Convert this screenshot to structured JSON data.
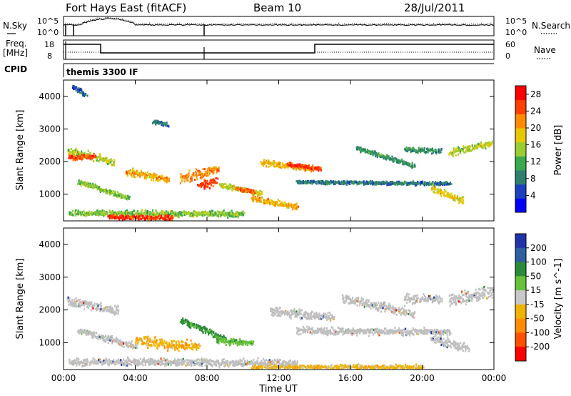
{
  "header": {
    "station": "Fort Hays East (fitACF)",
    "beam": "Beam 10",
    "date": "28/Jul/2011"
  },
  "side_labels": {
    "nsky": "N.Sky",
    "freq_l1": "Freq.",
    "freq_l2": "[MHz]",
    "cpid": "CPID",
    "nsearch": "N.Search",
    "nave": "Nave"
  },
  "small_axis_ticks": {
    "noise_left": [
      "10^5",
      "10^0"
    ],
    "noise_right": [
      "10^5",
      "10^0"
    ],
    "freq_left": [
      "18",
      "8"
    ],
    "freq_right": [
      "60",
      "0"
    ]
  },
  "cpid_text": "themis 3300 IF",
  "colors": {
    "power": [
      "#0000ff",
      "#1e3fbf",
      "#2f7f6f",
      "#3aa84e",
      "#9acd32",
      "#e8c800",
      "#ff8c00",
      "#ff4000",
      "#ff0000"
    ],
    "velocity": [
      "#2233aa",
      "#2f5fa0",
      "#2a8a3a",
      "#66c23a",
      "#c8c8c8",
      "#f0b400",
      "#ff8c00",
      "#ff5000",
      "#ff0000"
    ],
    "ground_scatter": "#bfbfbf"
  },
  "chart_data": [
    {
      "type": "heatmap",
      "title": "Power",
      "xlabel": "",
      "ylabel": "Slant Range [km]",
      "xlim": [
        0,
        24
      ],
      "ylim": [
        180,
        4500
      ],
      "x_ticks": [
        "00:00",
        "04:00",
        "08:00",
        "12:00",
        "16:00",
        "20:00",
        "00:00"
      ],
      "y_ticks": [
        1000,
        2000,
        3000,
        4000
      ],
      "colorbar": {
        "label": "Power [dB]",
        "ticks": [
          4,
          8,
          12,
          16,
          20,
          24,
          28
        ],
        "range": [
          0,
          30
        ]
      },
      "features": [
        {
          "t0": 0.2,
          "t1": 2.8,
          "r0": 2350,
          "r1": 2000,
          "w": 170,
          "v": 16
        },
        {
          "t0": 0.3,
          "t1": 1.7,
          "r0": 2150,
          "r1": 2200,
          "w": 110,
          "v": 24
        },
        {
          "t0": 0.8,
          "t1": 3.6,
          "r0": 1400,
          "r1": 900,
          "w": 110,
          "v": 14
        },
        {
          "t0": 0.3,
          "t1": 10.0,
          "r0": 450,
          "r1": 420,
          "w": 130,
          "v": 14
        },
        {
          "t0": 2.5,
          "t1": 6.0,
          "r0": 320,
          "r1": 300,
          "w": 110,
          "v": 26
        },
        {
          "t0": 3.5,
          "t1": 5.8,
          "r0": 1700,
          "r1": 1500,
          "w": 170,
          "v": 20
        },
        {
          "t0": 6.5,
          "t1": 8.6,
          "r0": 1500,
          "r1": 1800,
          "w": 220,
          "v": 22
        },
        {
          "t0": 7.5,
          "t1": 8.5,
          "r0": 1300,
          "r1": 1400,
          "w": 170,
          "v": 26
        },
        {
          "t0": 8.7,
          "t1": 11.0,
          "r0": 1300,
          "r1": 1050,
          "w": 110,
          "v": 16
        },
        {
          "t0": 9.6,
          "t1": 10.6,
          "r0": 1200,
          "r1": 1100,
          "w": 80,
          "v": 24
        },
        {
          "t0": 10.5,
          "t1": 13.0,
          "r0": 900,
          "r1": 650,
          "w": 150,
          "v": 20
        },
        {
          "t0": 11.0,
          "t1": 13.8,
          "r0": 2000,
          "r1": 1800,
          "w": 130,
          "v": 20
        },
        {
          "t0": 12.5,
          "t1": 14.3,
          "r0": 1950,
          "r1": 1800,
          "w": 90,
          "v": 26
        },
        {
          "t0": 13.0,
          "t1": 21.5,
          "r0": 1400,
          "r1": 1350,
          "w": 80,
          "v": 8
        },
        {
          "t0": 16.3,
          "t1": 19.5,
          "r0": 2450,
          "r1": 1900,
          "w": 100,
          "v": 10
        },
        {
          "t0": 19.0,
          "t1": 21.0,
          "r0": 2400,
          "r1": 2350,
          "w": 120,
          "v": 10
        },
        {
          "t0": 20.5,
          "t1": 22.2,
          "r0": 1200,
          "r1": 850,
          "w": 170,
          "v": 18
        },
        {
          "t0": 21.5,
          "t1": 24.0,
          "r0": 2300,
          "r1": 2600,
          "w": 150,
          "v": 16
        },
        {
          "t0": 0.5,
          "t1": 1.2,
          "r0": 4300,
          "r1": 4100,
          "w": 130,
          "v": 6
        },
        {
          "t0": 5.0,
          "t1": 5.8,
          "r0": 3250,
          "r1": 3150,
          "w": 100,
          "v": 8
        }
      ]
    },
    {
      "type": "heatmap",
      "title": "Velocity",
      "xlabel": "Time UT",
      "ylabel": "Slant Range [km]",
      "xlim": [
        0,
        24
      ],
      "ylim": [
        180,
        4500
      ],
      "x_ticks": [
        "00:00",
        "04:00",
        "08:00",
        "12:00",
        "16:00",
        "20:00",
        "00:00"
      ],
      "y_ticks": [
        1000,
        2000,
        3000,
        4000
      ],
      "colorbar": {
        "label": "Velocity [m s^-1]",
        "ticks": [
          "200",
          "100",
          "50",
          "15",
          "-15",
          "-50",
          "-100",
          "-200"
        ]
      },
      "features": [
        {
          "t0": 0.2,
          "t1": 3.0,
          "r0": 2300,
          "r1": 2000,
          "w": 200,
          "v": "gs"
        },
        {
          "t0": 0.8,
          "t1": 4.0,
          "r0": 1400,
          "r1": 900,
          "w": 150,
          "v": "gs"
        },
        {
          "t0": 0.3,
          "t1": 13.0,
          "r0": 450,
          "r1": 400,
          "w": 160,
          "v": "gs"
        },
        {
          "t0": 4.0,
          "t1": 7.5,
          "r0": 1100,
          "r1": 900,
          "w": 250,
          "v": -40
        },
        {
          "t0": 6.5,
          "t1": 9.0,
          "r0": 1700,
          "r1": 1150,
          "w": 150,
          "v": 60
        },
        {
          "t0": 8.5,
          "t1": 10.5,
          "r0": 1100,
          "r1": 1000,
          "w": 130,
          "v": 40
        },
        {
          "t0": 10.5,
          "t1": 20.0,
          "r0": 280,
          "r1": 280,
          "w": 110,
          "v": -30
        },
        {
          "t0": 11.5,
          "t1": 15.0,
          "r0": 2000,
          "r1": 1800,
          "w": 200,
          "v": "gs"
        },
        {
          "t0": 13.0,
          "t1": 21.5,
          "r0": 1400,
          "r1": 1350,
          "w": 150,
          "v": "gs"
        },
        {
          "t0": 15.5,
          "t1": 19.5,
          "r0": 2400,
          "r1": 1900,
          "w": 200,
          "v": "gs"
        },
        {
          "t0": 19.0,
          "t1": 21.0,
          "r0": 2400,
          "r1": 2350,
          "w": 200,
          "v": "gs"
        },
        {
          "t0": 20.5,
          "t1": 22.5,
          "r0": 1150,
          "r1": 850,
          "w": 200,
          "v": "gs"
        },
        {
          "t0": 21.5,
          "t1": 24.0,
          "r0": 2300,
          "r1": 2600,
          "w": 300,
          "v": "gs"
        }
      ]
    }
  ]
}
